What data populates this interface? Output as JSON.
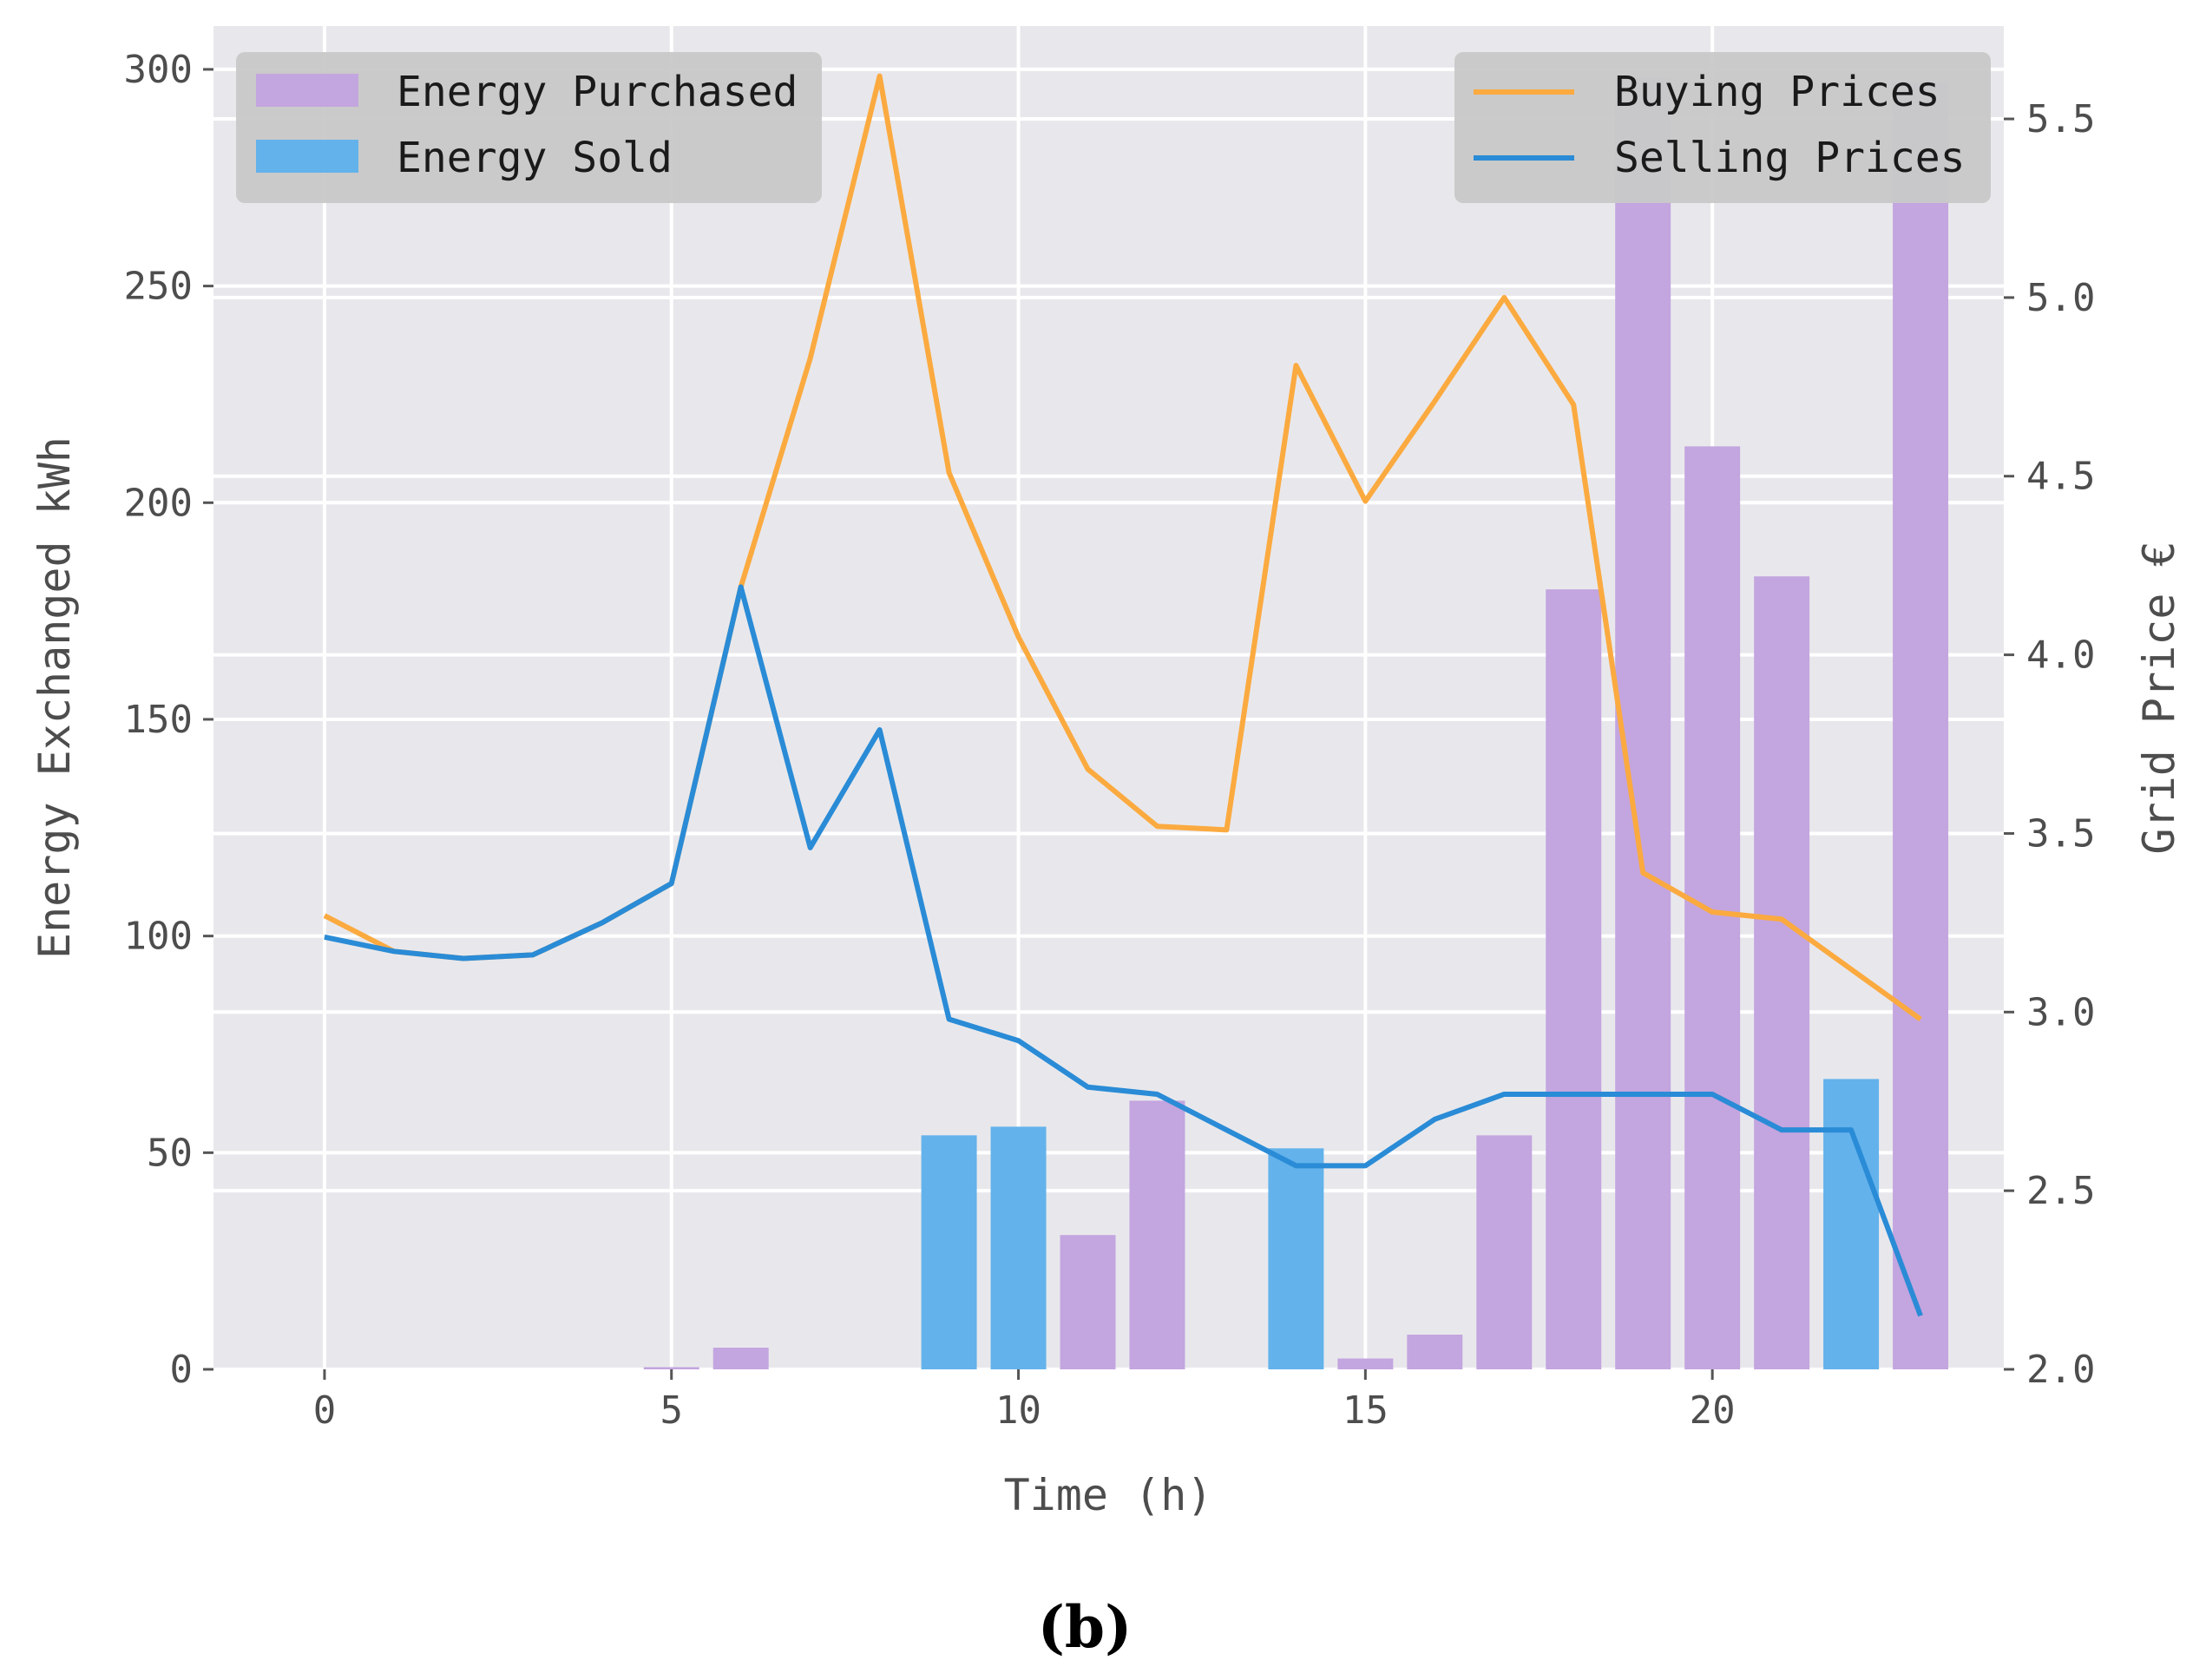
{
  "chart_data": {
    "type": "bar",
    "caption": "(b)",
    "xlabel": "Time (h)",
    "ylabel": "Energy Exchanged kWh",
    "y2label": "Grid Price €",
    "xlim": [
      -1.6,
      24.2
    ],
    "ylim": [
      0,
      310
    ],
    "y2lim": [
      2.0,
      5.76
    ],
    "x_ticks": [
      0,
      5,
      10,
      15,
      20
    ],
    "x_tick_labels": [
      "0",
      "5",
      "10",
      "15",
      "20"
    ],
    "y_ticks": [
      0,
      50,
      100,
      150,
      200,
      250,
      300
    ],
    "y_tick_labels": [
      "0",
      "50",
      "100",
      "150",
      "200",
      "250",
      "300"
    ],
    "y2_ticks": [
      2.0,
      2.5,
      3.0,
      3.5,
      4.0,
      4.5,
      5.0,
      5.5
    ],
    "y2_tick_labels": [
      "2.0",
      "2.5",
      "3.0",
      "3.5",
      "4.0",
      "4.5",
      "5.0",
      "5.5"
    ],
    "hours": [
      0,
      1,
      2,
      3,
      4,
      5,
      6,
      7,
      8,
      9,
      10,
      11,
      12,
      13,
      14,
      15,
      16,
      17,
      18,
      19,
      20,
      21,
      22,
      23
    ],
    "series": [
      {
        "name": "Energy Purchased",
        "kind": "bar",
        "axis": "left",
        "color": "#c3a5df",
        "values": [
          0,
          0,
          0,
          0,
          0,
          0.5,
          5,
          0,
          0,
          0,
          0,
          31,
          62,
          0,
          0,
          2.5,
          8,
          54,
          180,
          298,
          213,
          183,
          0,
          297
        ]
      },
      {
        "name": "Energy Sold",
        "kind": "bar",
        "axis": "left",
        "color": "#63b2eb",
        "values": [
          0,
          0,
          0,
          0,
          0,
          0,
          0,
          0,
          0,
          54,
          56,
          0,
          0,
          0,
          51,
          0,
          0,
          0,
          0,
          0,
          0,
          0,
          67,
          0
        ]
      },
      {
        "name": "Buying Prices",
        "kind": "line",
        "axis": "right",
        "color": "#fbaa40",
        "values": [
          3.27,
          3.17,
          3.15,
          3.16,
          3.25,
          3.36,
          4.19,
          4.83,
          5.62,
          4.51,
          4.05,
          3.68,
          3.52,
          3.51,
          4.81,
          4.43,
          4.71,
          5.0,
          4.7,
          3.39,
          3.28,
          3.26,
          3.12,
          2.98
        ]
      },
      {
        "name": "Selling Prices",
        "kind": "line",
        "axis": "right",
        "color": "#2a8bd6",
        "values": [
          3.21,
          3.17,
          3.15,
          3.16,
          3.25,
          3.36,
          4.19,
          3.46,
          3.79,
          2.98,
          2.92,
          2.79,
          2.77,
          2.67,
          2.57,
          2.57,
          2.7,
          2.77,
          2.77,
          2.77,
          2.77,
          2.67,
          2.67,
          2.15
        ]
      }
    ],
    "legend_left": [
      "Energy Purchased",
      "Energy Sold"
    ],
    "legend_right": [
      "Buying Prices",
      "Selling Prices"
    ],
    "legend_left_placement": "top-left",
    "legend_right_placement": "top-right",
    "grid": true,
    "background_color": "#e8e8ec",
    "grid_color": "#ffffff"
  }
}
